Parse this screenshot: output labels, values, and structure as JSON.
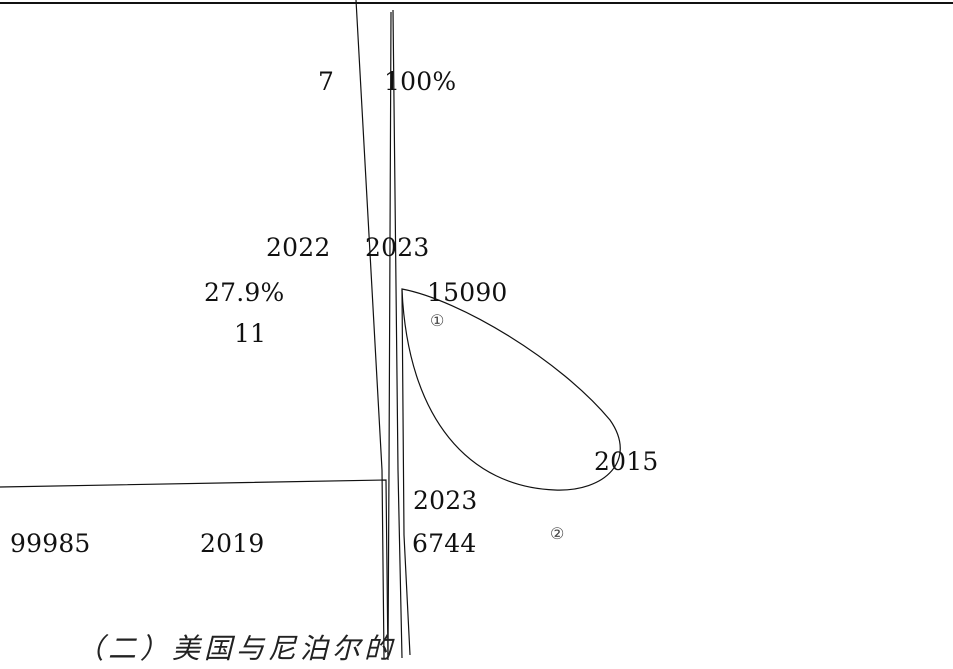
{
  "texts": {
    "t_7": "7",
    "t_100pct": "100%",
    "t_2022": "2022",
    "t_2023_top": "2023",
    "t_27_9": "27.9%",
    "t_15090": "15090",
    "t_11": "11",
    "t_circle1": "①",
    "t_2015": "2015",
    "t_2023_mid": "2023",
    "t_99985": "99985",
    "t_2019": "2019",
    "t_6744": "6744",
    "t_circle2": "②",
    "heading": "（二）美国与尼泊尔的"
  }
}
